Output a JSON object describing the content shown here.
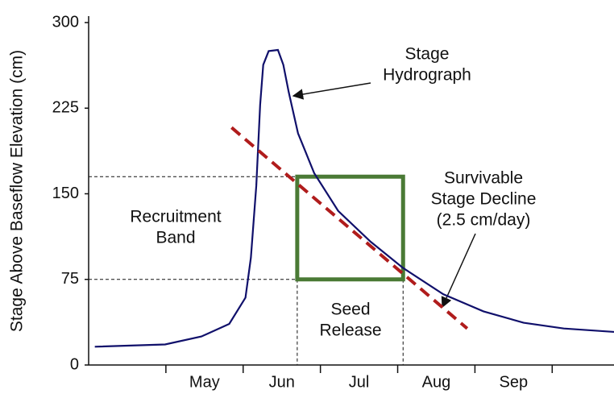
{
  "chart_data": {
    "type": "line",
    "y_label": "Stage Above Baseflow Elevation (cm)",
    "ylim": [
      0,
      300
    ],
    "yticks": [
      0,
      75,
      150,
      225,
      300
    ],
    "xlim": [
      -1,
      5.8
    ],
    "categories": [
      "May",
      "Jun",
      "Jul",
      "Aug",
      "Sep"
    ],
    "series": [
      {
        "color": "#10106b",
        "x": [
          -0.92,
          -0.01,
          0.46,
          0.82,
          1.03,
          1.1,
          1.17,
          1.22,
          1.26,
          1.33,
          1.45,
          1.52,
          1.59,
          1.71,
          1.92,
          2.23,
          2.65,
          3.07,
          3.59,
          4.11,
          4.63,
          5.15,
          5.8
        ],
        "values": [
          16,
          18,
          25,
          36,
          59,
          94,
          157,
          228,
          263,
          275,
          276,
          263,
          239,
          203,
          168,
          135,
          108,
          85,
          62,
          47,
          37,
          32,
          29
        ]
      }
    ],
    "decline_line": {
      "color": "#b01c1c",
      "x": [
        0.85,
        3.9
      ],
      "values": [
        208,
        32
      ]
    },
    "recruitment_band": {
      "values": [
        75,
        165
      ]
    },
    "seed_release": {
      "x": [
        1.7,
        3.07
      ]
    },
    "box_color": "#4a7a35",
    "annotations": {
      "hydrograph": [
        "Stage",
        "Hydrograph"
      ],
      "recruitment": [
        "Recruitment",
        "Band"
      ],
      "decline": [
        "Survivable",
        "Stage Decline",
        "(2.5 cm/day)"
      ],
      "seed": [
        "Seed",
        "Release"
      ]
    }
  }
}
